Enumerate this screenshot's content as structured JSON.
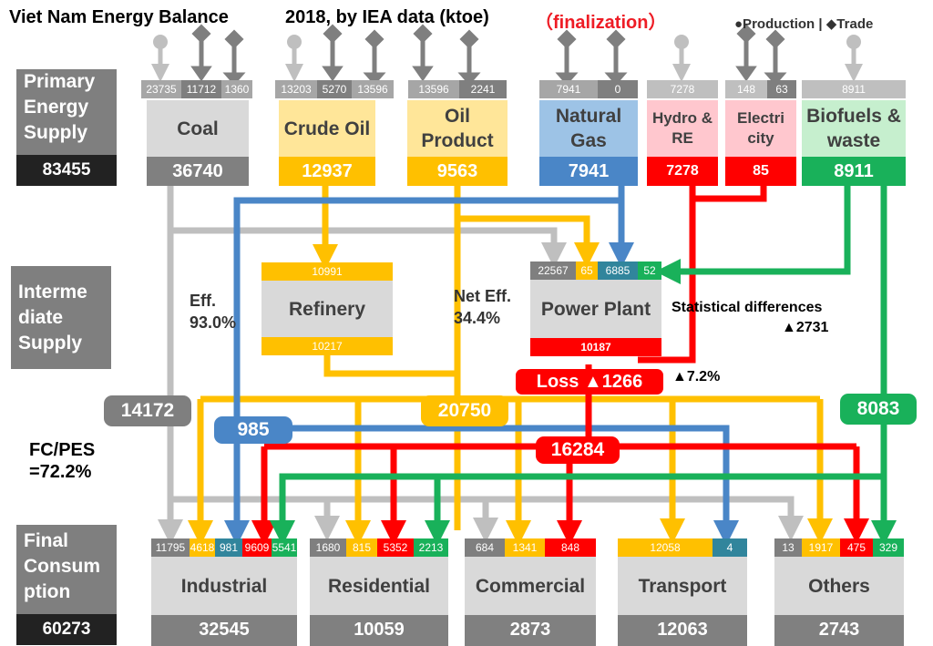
{
  "title": {
    "main": "Viet Nam Energy Balance",
    "sub": "2018, by IEA data (ktoe)",
    "status": "（finalization）"
  },
  "legend": {
    "production": "●Production |",
    "trade": "◆Trade"
  },
  "colors": {
    "gray": "#bfbfbf",
    "coal": "#7f7f7f",
    "oil": "#ffc000",
    "gas": "#4a86c7",
    "red": "#ff0000",
    "green": "#19b15a"
  },
  "sections": {
    "primary": {
      "label": "Primary Energy Supply",
      "total": "83455"
    },
    "intermediate": {
      "label": "Interme diate Supply"
    },
    "final": {
      "label": "Final Consum ption",
      "total": "60273"
    }
  },
  "primary_sources": [
    {
      "name": "Coal",
      "total": "36740",
      "values": [
        "23735",
        "11712",
        "1360"
      ]
    },
    {
      "name": "Crude Oil",
      "total": "12937",
      "values": [
        "13203",
        "5270",
        "13596"
      ]
    },
    {
      "name": "Oil Product",
      "total": "9563",
      "values": [
        "13596",
        "2241"
      ]
    },
    {
      "name": "Natural Gas",
      "total": "7941",
      "values": [
        "7941",
        "0"
      ]
    },
    {
      "name": "Hydro & RE",
      "total": "7278",
      "values": [
        "7278"
      ]
    },
    {
      "name": "Electri city",
      "total": "85",
      "values": [
        "148",
        "63"
      ]
    },
    {
      "name": "Biofuels & waste",
      "total": "8911",
      "values": [
        "8911"
      ]
    }
  ],
  "refinery": {
    "name": "Refinery",
    "input": "10991",
    "output": "10217"
  },
  "power_plant": {
    "name": "Power Plant",
    "inputs": [
      "22567",
      "65",
      "6885",
      "52"
    ],
    "output": "10187"
  },
  "labels": {
    "eff": "Eff. 93.0%",
    "net_eff": "Net Eff. 34.4%",
    "stat_diff": "Statistical differences",
    "stat_diff_value": "▲2731",
    "loss": "Loss ▲1266",
    "loss_pct": "▲7.2%",
    "fc_pes": "FC/PES =72.2%"
  },
  "flows": {
    "coal": "14172",
    "gas": "985",
    "oil": "20750",
    "electricity": "16284",
    "bio": "8083"
  },
  "consumers": [
    {
      "name": "Industrial",
      "total": "32545",
      "values": [
        "11795",
        "4618",
        "981",
        "9609",
        "5541"
      ]
    },
    {
      "name": "Residential",
      "total": "10059",
      "values": [
        "1680",
        "815",
        "5352",
        "2213"
      ]
    },
    {
      "name": "Commercial",
      "total": "2873",
      "values": [
        "684",
        "1341",
        "848"
      ]
    },
    {
      "name": "Transport",
      "total": "12063",
      "values": [
        "12058",
        "4"
      ]
    },
    {
      "name": "Others",
      "total": "2743",
      "values": [
        "13",
        "1917",
        "475",
        "329"
      ]
    }
  ]
}
